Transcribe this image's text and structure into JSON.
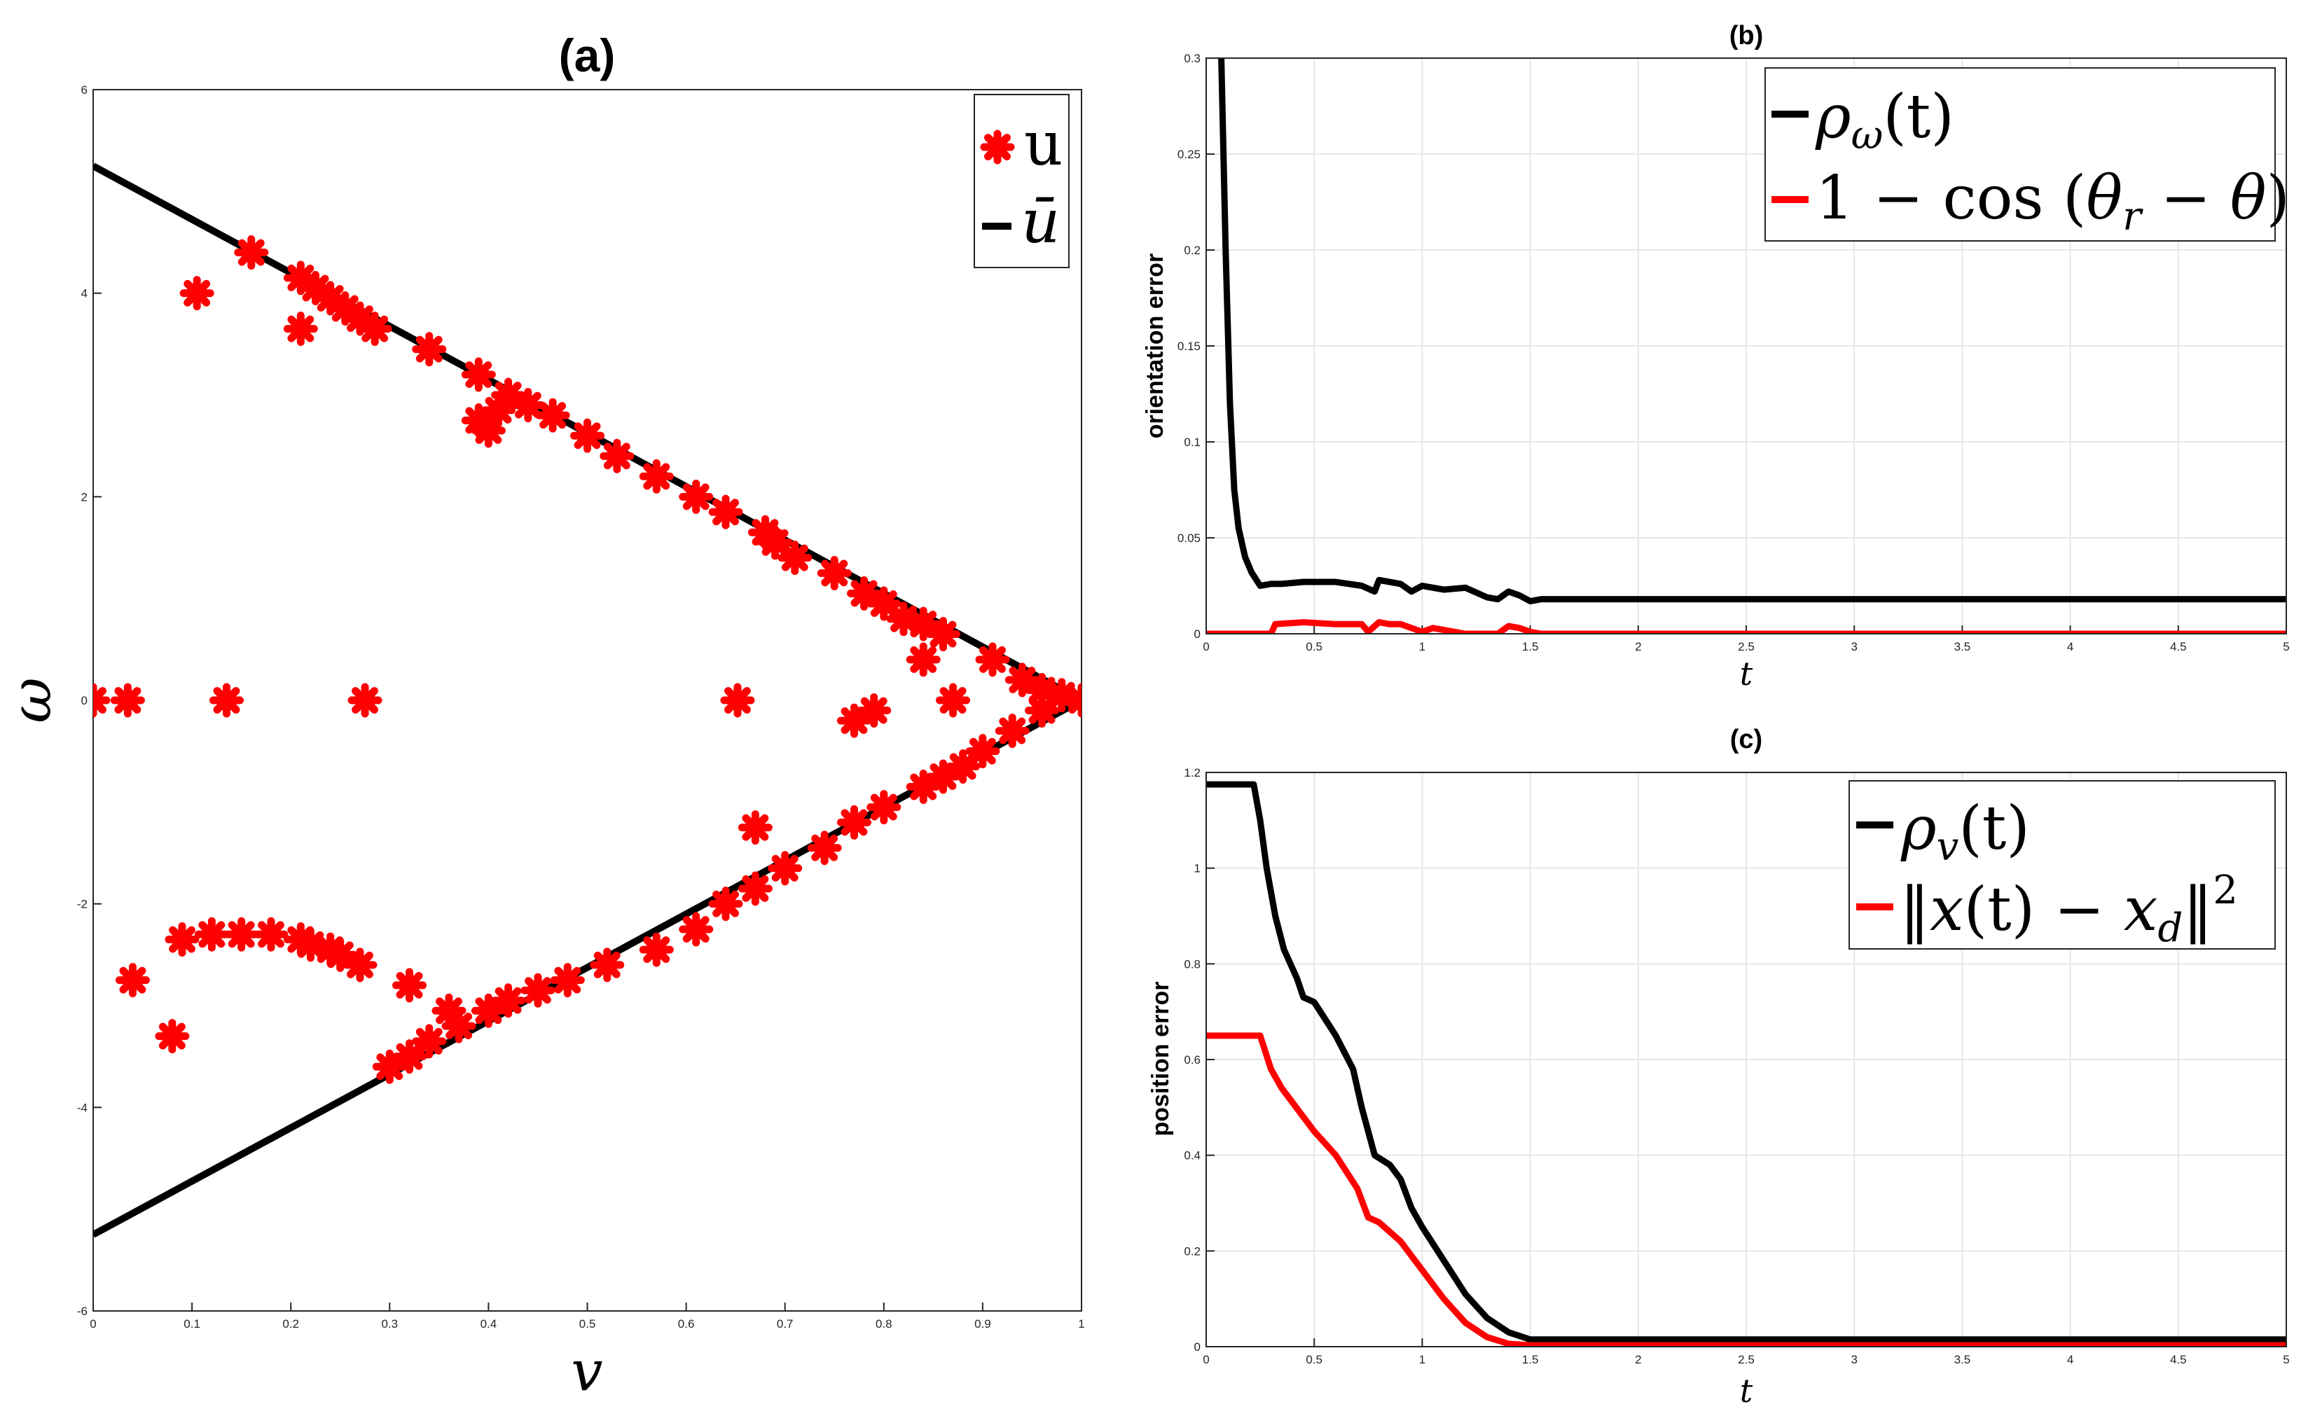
{
  "colors": {
    "black": "#000000",
    "red": "#ff0000",
    "grid": "#e6e6e6",
    "axis": "#262626"
  },
  "chart_data": [
    {
      "id": "a",
      "type": "scatter",
      "title": "(a)",
      "xlabel": "v",
      "ylabel": "ω",
      "xlim": [
        0,
        1
      ],
      "ylim": [
        -6,
        6
      ],
      "xticks": [
        "0",
        "0.1",
        "0.2",
        "0.3",
        "0.4",
        "0.5",
        "0.6",
        "0.7",
        "0.8",
        "0.9",
        "1"
      ],
      "yticks": [
        "-6",
        "-4",
        "-2",
        "0",
        "2",
        "4",
        "6"
      ],
      "grid": false,
      "legend_position": "top-right",
      "series": [
        {
          "name": "u",
          "marker": "asterisk",
          "color": "#ff0000",
          "points": [
            [
              0.0,
              0.0
            ],
            [
              0.035,
              0.0
            ],
            [
              0.135,
              0.0
            ],
            [
              0.275,
              0.0
            ],
            [
              0.652,
              0.0
            ],
            [
              0.105,
              4.0
            ],
            [
              0.16,
              4.4
            ],
            [
              0.21,
              3.65
            ],
            [
              0.21,
              4.15
            ],
            [
              0.225,
              4.05
            ],
            [
              0.24,
              3.95
            ],
            [
              0.255,
              3.85
            ],
            [
              0.27,
              3.75
            ],
            [
              0.285,
              3.65
            ],
            [
              0.34,
              3.45
            ],
            [
              0.39,
              3.2
            ],
            [
              0.39,
              2.75
            ],
            [
              0.4,
              2.65
            ],
            [
              0.41,
              2.85
            ],
            [
              0.42,
              3.0
            ],
            [
              0.44,
              2.9
            ],
            [
              0.465,
              2.8
            ],
            [
              0.5,
              2.6
            ],
            [
              0.53,
              2.4
            ],
            [
              0.57,
              2.2
            ],
            [
              0.61,
              2.0
            ],
            [
              0.64,
              1.85
            ],
            [
              0.68,
              1.65
            ],
            [
              0.69,
              1.55
            ],
            [
              0.71,
              1.4
            ],
            [
              0.75,
              1.25
            ],
            [
              0.78,
              1.05
            ],
            [
              0.8,
              0.95
            ],
            [
              0.82,
              0.8
            ],
            [
              0.84,
              0.75
            ],
            [
              0.86,
              0.65
            ],
            [
              0.84,
              0.4
            ],
            [
              0.91,
              0.4
            ],
            [
              0.94,
              0.2
            ],
            [
              0.96,
              0.1
            ],
            [
              0.98,
              0.05
            ],
            [
              1.0,
              0.0
            ],
            [
              0.87,
              0.0
            ],
            [
              0.79,
              -0.1
            ],
            [
              0.77,
              -0.2
            ],
            [
              0.67,
              -1.25
            ],
            [
              0.96,
              -0.1
            ],
            [
              0.93,
              -0.3
            ],
            [
              0.9,
              -0.5
            ],
            [
              0.88,
              -0.65
            ],
            [
              0.86,
              -0.75
            ],
            [
              0.84,
              -0.85
            ],
            [
              0.8,
              -1.05
            ],
            [
              0.77,
              -1.2
            ],
            [
              0.74,
              -1.45
            ],
            [
              0.7,
              -1.65
            ],
            [
              0.67,
              -1.85
            ],
            [
              0.64,
              -2.0
            ],
            [
              0.61,
              -2.25
            ],
            [
              0.57,
              -2.45
            ],
            [
              0.52,
              -2.6
            ],
            [
              0.48,
              -2.75
            ],
            [
              0.45,
              -2.85
            ],
            [
              0.42,
              -2.95
            ],
            [
              0.4,
              -3.05
            ],
            [
              0.37,
              -3.2
            ],
            [
              0.36,
              -3.05
            ],
            [
              0.34,
              -3.35
            ],
            [
              0.32,
              -3.5
            ],
            [
              0.3,
              -3.6
            ],
            [
              0.32,
              -2.8
            ],
            [
              0.04,
              -2.75
            ],
            [
              0.08,
              -3.3
            ],
            [
              0.09,
              -2.35
            ],
            [
              0.12,
              -2.3
            ],
            [
              0.15,
              -2.3
            ],
            [
              0.18,
              -2.3
            ],
            [
              0.21,
              -2.35
            ],
            [
              0.22,
              -2.4
            ],
            [
              0.24,
              -2.45
            ],
            [
              0.25,
              -2.5
            ],
            [
              0.27,
              -2.6
            ]
          ]
        },
        {
          "name": "ū",
          "type": "line",
          "color": "#000000",
          "points": [
            [
              0.0,
              5.25
            ],
            [
              1.0,
              0.0
            ],
            [
              0.0,
              -5.25
            ]
          ]
        }
      ]
    },
    {
      "id": "b",
      "type": "line",
      "title": "(b)",
      "xlabel": "t",
      "ylabel": "orientation error",
      "xlim": [
        0,
        5
      ],
      "ylim": [
        0,
        0.3
      ],
      "xticks": [
        "0",
        "0.5",
        "1",
        "1.5",
        "2",
        "2.5",
        "3",
        "3.5",
        "4",
        "4.5",
        "5"
      ],
      "yticks": [
        "0",
        "0.05",
        "0.1",
        "0.15",
        "0.2",
        "0.25",
        "0.3"
      ],
      "grid": true,
      "legend_position": "top-right",
      "series": [
        {
          "name": "ρω(t)",
          "color": "#000000",
          "x": [
            0.07,
            0.09,
            0.11,
            0.13,
            0.15,
            0.18,
            0.21,
            0.25,
            0.3,
            0.35,
            0.45,
            0.6,
            0.72,
            0.78,
            0.8,
            0.9,
            0.95,
            1.0,
            1.1,
            1.2,
            1.3,
            1.35,
            1.4,
            1.45,
            1.5,
            1.55,
            2.0,
            3.0,
            4.0,
            5.0
          ],
          "values": [
            0.3,
            0.2,
            0.12,
            0.075,
            0.055,
            0.04,
            0.032,
            0.025,
            0.026,
            0.026,
            0.027,
            0.027,
            0.025,
            0.022,
            0.028,
            0.026,
            0.022,
            0.025,
            0.023,
            0.024,
            0.019,
            0.018,
            0.022,
            0.02,
            0.017,
            0.018,
            0.018,
            0.018,
            0.018,
            0.018
          ]
        },
        {
          "name": "1 − cos(θr − θ)",
          "color": "#ff0000",
          "x": [
            0,
            0.3,
            0.32,
            0.45,
            0.6,
            0.72,
            0.75,
            0.8,
            0.85,
            0.9,
            1.0,
            1.05,
            1.2,
            1.3,
            1.35,
            1.4,
            1.45,
            1.5,
            1.55,
            2.0,
            3.0,
            4.0,
            5.0
          ],
          "values": [
            0,
            0,
            0.005,
            0.006,
            0.005,
            0.005,
            0.001,
            0.006,
            0.005,
            0.005,
            0.001,
            0.003,
            0.0,
            0.0,
            0.0,
            0.004,
            0.003,
            0.001,
            0.0,
            0,
            0,
            0,
            0
          ]
        }
      ],
      "legend": [
        {
          "lead": "ρ",
          "sub": "ω",
          "tail": "(t)"
        },
        {
          "text1": "1 − cos (",
          "var": "θ",
          "sub": "r",
          "text2": " − ",
          "var2": "θ",
          "text3": ")"
        }
      ]
    },
    {
      "id": "c",
      "type": "line",
      "title": "(c)",
      "xlabel": "t",
      "ylabel": "position error",
      "xlim": [
        0,
        5
      ],
      "ylim": [
        0,
        1.2
      ],
      "xticks": [
        "0",
        "0.5",
        "1",
        "1.5",
        "2",
        "2.5",
        "3",
        "3.5",
        "4",
        "4.5",
        "5"
      ],
      "yticks": [
        "0",
        "0.2",
        "0.4",
        "0.6",
        "0.8",
        "1",
        "1.2"
      ],
      "grid": true,
      "legend_position": "top-right",
      "series": [
        {
          "name": "ρv(t)",
          "color": "#000000",
          "x": [
            0,
            0.22,
            0.25,
            0.28,
            0.32,
            0.36,
            0.42,
            0.45,
            0.5,
            0.6,
            0.68,
            0.72,
            0.78,
            0.85,
            0.9,
            0.95,
            1.0,
            1.1,
            1.2,
            1.3,
            1.4,
            1.5,
            2.0,
            3.0,
            4.0,
            5.0
          ],
          "values": [
            1.175,
            1.175,
            1.1,
            1.0,
            0.9,
            0.83,
            0.77,
            0.73,
            0.72,
            0.65,
            0.58,
            0.5,
            0.4,
            0.38,
            0.35,
            0.29,
            0.25,
            0.18,
            0.11,
            0.06,
            0.03,
            0.015,
            0.015,
            0.015,
            0.015,
            0.015
          ]
        },
        {
          "name": "‖x(t) − xd‖²",
          "color": "#ff0000",
          "x": [
            0,
            0.25,
            0.3,
            0.35,
            0.45,
            0.5,
            0.6,
            0.7,
            0.75,
            0.8,
            0.9,
            1.0,
            1.1,
            1.2,
            1.3,
            1.4,
            1.5,
            2.0,
            3.0,
            4.0,
            5.0
          ],
          "values": [
            0.65,
            0.65,
            0.58,
            0.54,
            0.48,
            0.45,
            0.4,
            0.33,
            0.27,
            0.26,
            0.22,
            0.16,
            0.1,
            0.05,
            0.02,
            0.006,
            0.003,
            0.003,
            0.003,
            0.003,
            0.003
          ]
        }
      ],
      "legend": [
        {
          "lead": "ρ",
          "sub": "v",
          "tail": "(t)"
        },
        {
          "open": "‖",
          "var": "x",
          "mid": "(t) − ",
          "var2": "x",
          "sub": "d",
          "close": "‖",
          "sup": "2"
        }
      ]
    }
  ]
}
